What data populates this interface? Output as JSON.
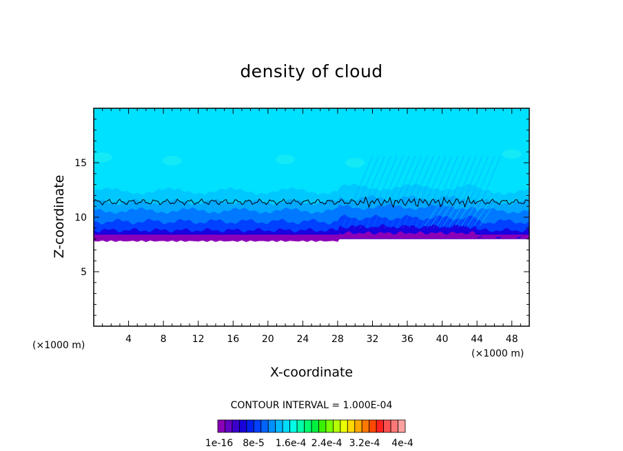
{
  "chart_data": {
    "type": "contour",
    "title": "density of cloud",
    "xlabel": "X-coordinate",
    "ylabel": "Z-coordinate",
    "x_unit": "(×1000 m)",
    "xlim": [
      0,
      50
    ],
    "ylim": [
      0,
      20
    ],
    "x_ticks": [
      4,
      8,
      12,
      16,
      20,
      24,
      28,
      32,
      36,
      40,
      44,
      48
    ],
    "y_ticks": [
      5,
      10,
      15
    ],
    "contour_interval_label": "CONTOUR INTERVAL = 1.000E-04",
    "colorbar_labels": [
      "1e-16",
      "8e-5",
      "1.6e-4",
      "2.4e-4",
      "3.2e-4",
      "4e-4"
    ],
    "colorbar_colors": [
      "#8a00b8",
      "#6200c4",
      "#3a00cc",
      "#1800d8",
      "#0020ec",
      "#0040ff",
      "#0064ff",
      "#0090ff",
      "#00b8ff",
      "#00dcff",
      "#00ffe6",
      "#00ffaa",
      "#00ff6e",
      "#00f040",
      "#38f000",
      "#78ff00",
      "#b4ff00",
      "#ecff00",
      "#ffd800",
      "#ffa800",
      "#ff7800",
      "#ff4800",
      "#ff2020",
      "#ff5050",
      "#ff7878",
      "#ffa0a0"
    ],
    "field_colors": {
      "top": "#00e0ff",
      "upper": "#00c8ff",
      "mid": "#00a8ff",
      "blue1": "#0078ff",
      "blue2": "#0040ff",
      "blue3": "#1800e0",
      "base": "#8a00b8",
      "contour_line": "#000000"
    },
    "cloud_base_z": 8,
    "cloud_layers_z": [
      8.2,
      8.8,
      9.6,
      10.6,
      11.4,
      12.4
    ],
    "contour_line_z": 11.4
  }
}
